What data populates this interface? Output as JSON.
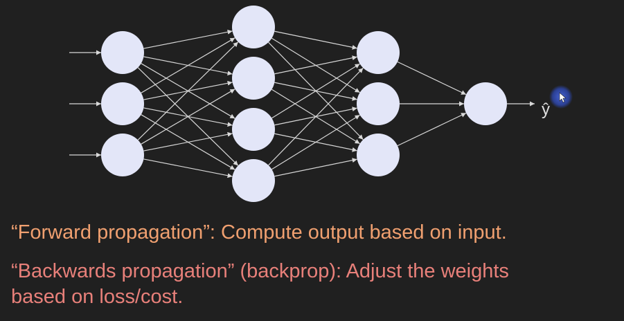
{
  "diagram": {
    "layers": [
      {
        "name": "input-layer",
        "neurons": 3
      },
      {
        "name": "hidden-layer-1",
        "neurons": 4
      },
      {
        "name": "hidden-layer-2",
        "neurons": 3
      },
      {
        "name": "output-layer",
        "neurons": 1
      }
    ],
    "output_label": "ŷ",
    "colors": {
      "background": "#202020",
      "neuron": "#e3e6f8",
      "edge": "#d8d8d8",
      "cursor_halo": "#3a56c8"
    }
  },
  "captions": {
    "forward": "“Forward propagation”: Compute output based on input.",
    "backward_line1": "“Backwards propagation” (backprop): Adjust the weights",
    "backward_line2": "based on loss/cost."
  }
}
